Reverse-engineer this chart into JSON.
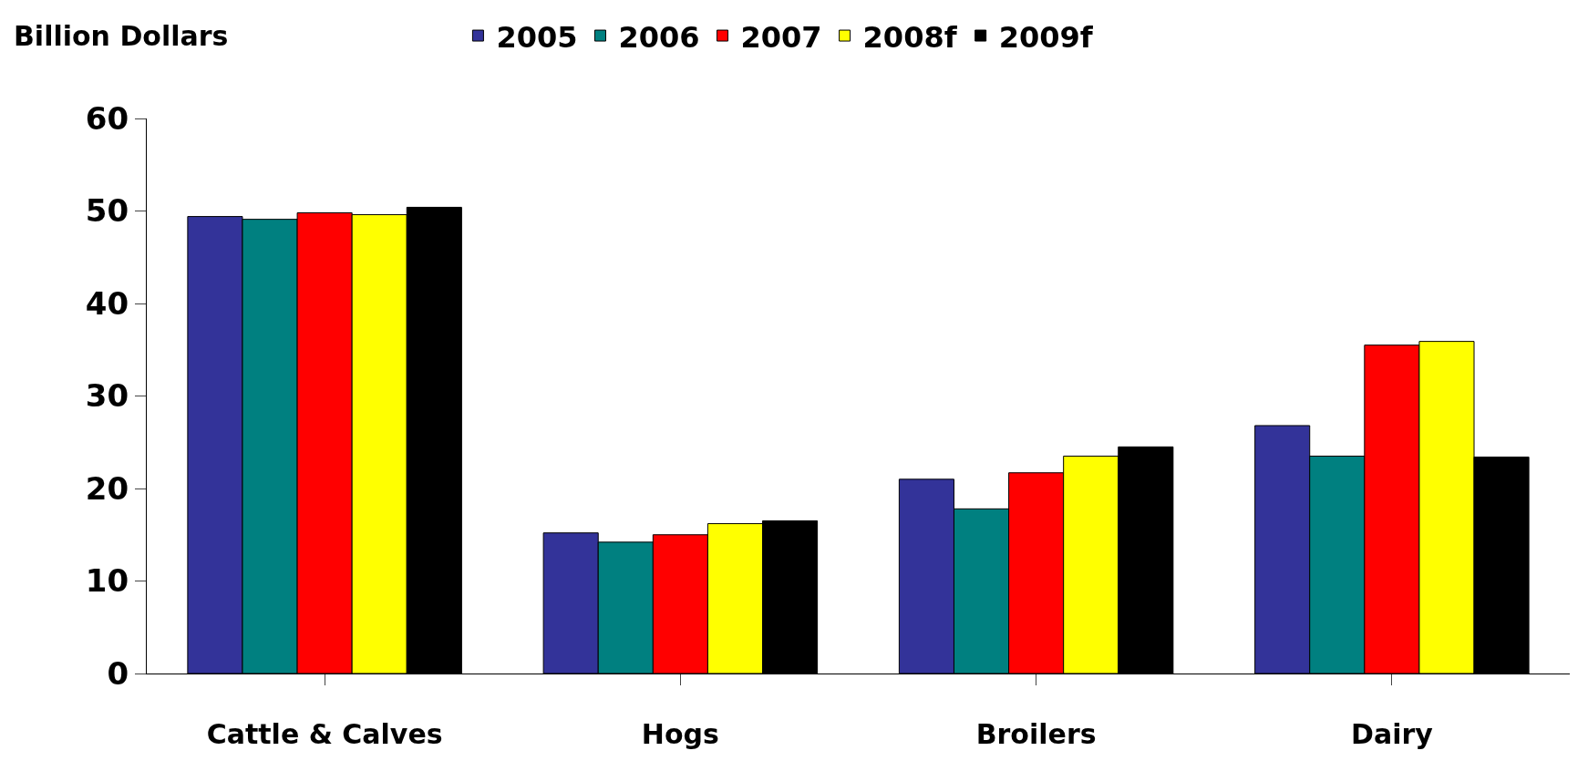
{
  "chart_data": {
    "type": "bar",
    "ylabel": "Billion Dollars",
    "categories": [
      "Cattle & Calves",
      "Hogs",
      "Broilers",
      "Dairy"
    ],
    "series": [
      {
        "name": "2005",
        "color": "#333399",
        "values": [
          49.4,
          15.2,
          21.0,
          26.8
        ]
      },
      {
        "name": "2006",
        "color": "#008080",
        "values": [
          49.1,
          14.2,
          17.8,
          23.5
        ]
      },
      {
        "name": "2007",
        "color": "#ff0000",
        "values": [
          49.8,
          15.0,
          21.7,
          35.5
        ]
      },
      {
        "name": "2008f",
        "color": "#ffff00",
        "values": [
          49.6,
          16.2,
          23.5,
          35.9
        ]
      },
      {
        "name": "2009f",
        "color": "#000000",
        "values": [
          50.4,
          16.5,
          24.5,
          23.4
        ]
      }
    ],
    "ylim": [
      0,
      60
    ],
    "yticks": [
      0,
      10,
      20,
      30,
      40,
      50,
      60
    ],
    "legend": "top"
  }
}
